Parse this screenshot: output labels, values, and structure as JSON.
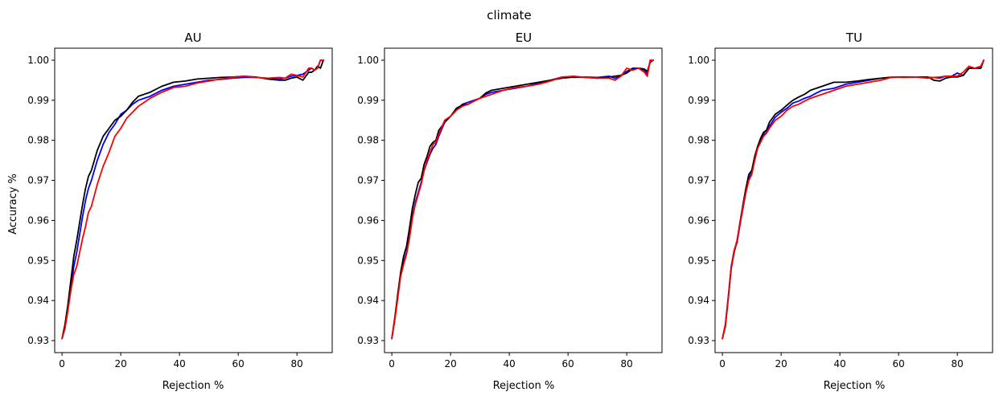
{
  "figure": {
    "title": "climate"
  },
  "chart_data": [
    {
      "type": "line",
      "title": "AU",
      "xlabel": "Rejection %",
      "ylabel": "Accuracy %",
      "xlim": [
        -2.5,
        92
      ],
      "ylim": [
        0.927,
        1.003
      ],
      "xticks": [
        0,
        20,
        40,
        60,
        80
      ],
      "yticks": [
        0.93,
        0.94,
        0.95,
        0.96,
        0.97,
        0.98,
        0.99,
        1.0
      ],
      "ytick_labels": [
        "0.93",
        "0.94",
        "0.95",
        "0.96",
        "0.97",
        "0.98",
        "0.99",
        "1.00"
      ],
      "grid": false,
      "x": [
        0,
        1,
        2,
        3,
        4,
        5,
        6,
        7,
        8,
        9,
        10,
        12,
        14,
        16,
        18,
        20,
        22,
        24,
        26,
        28,
        30,
        34,
        38,
        42,
        46,
        50,
        54,
        58,
        62,
        66,
        70,
        74,
        76,
        78,
        80,
        82,
        84,
        85,
        86,
        87,
        88,
        89
      ],
      "series": [
        {
          "color": "#0000ff",
          "values": [
            0.9305,
            0.9335,
            0.938,
            0.943,
            0.9485,
            0.952,
            0.9565,
            0.961,
            0.965,
            0.968,
            0.97,
            0.975,
            0.979,
            0.982,
            0.984,
            0.9865,
            0.9875,
            0.989,
            0.99,
            0.9905,
            0.991,
            0.9925,
            0.9935,
            0.994,
            0.9945,
            0.995,
            0.9952,
            0.9955,
            0.9957,
            0.9957,
            0.9955,
            0.9953,
            0.9955,
            0.996,
            0.9962,
            0.9965,
            0.9975,
            0.998,
            0.9975,
            0.998,
            1.0,
            1.0
          ]
        },
        {
          "color": "#000000",
          "values": [
            0.9305,
            0.934,
            0.939,
            0.945,
            0.951,
            0.955,
            0.9595,
            0.964,
            0.968,
            0.971,
            0.9725,
            0.9775,
            0.981,
            0.983,
            0.985,
            0.986,
            0.9875,
            0.9895,
            0.991,
            0.9915,
            0.992,
            0.9935,
            0.9945,
            0.9948,
            0.9953,
            0.9955,
            0.9957,
            0.9958,
            0.996,
            0.9958,
            0.9953,
            0.995,
            0.995,
            0.9955,
            0.9958,
            0.995,
            0.997,
            0.997,
            0.9975,
            0.9985,
            0.998,
            1.0
          ]
        },
        {
          "color": "#ff0000",
          "values": [
            0.9305,
            0.933,
            0.9375,
            0.9425,
            0.9465,
            0.9485,
            0.952,
            0.9555,
            0.9585,
            0.962,
            0.9635,
            0.969,
            0.9735,
            0.977,
            0.981,
            0.983,
            0.9855,
            0.987,
            0.9885,
            0.9895,
            0.9905,
            0.992,
            0.9932,
            0.9935,
            0.9943,
            0.9948,
            0.9953,
            0.9957,
            0.996,
            0.9957,
            0.9955,
            0.9957,
            0.9955,
            0.9965,
            0.9962,
            0.9958,
            0.998,
            0.998,
            0.9975,
            0.998,
            1.0,
            1.0
          ]
        }
      ]
    },
    {
      "type": "line",
      "title": "EU",
      "xlabel": "Rejection %",
      "ylabel": "",
      "xlim": [
        -2.5,
        92
      ],
      "ylim": [
        0.927,
        1.003
      ],
      "xticks": [
        0,
        20,
        40,
        60,
        80
      ],
      "yticks": [
        0.93,
        0.94,
        0.95,
        0.96,
        0.97,
        0.98,
        0.99,
        1.0
      ],
      "ytick_labels": [
        "0.93",
        "0.94",
        "0.95",
        "0.96",
        "0.97",
        "0.98",
        "0.99",
        "1.00"
      ],
      "grid": false,
      "x": [
        0,
        1,
        2,
        3,
        4,
        5,
        6,
        7,
        8,
        9,
        10,
        11,
        12,
        13,
        14,
        15,
        16,
        18,
        20,
        22,
        24,
        26,
        28,
        30,
        32,
        34,
        38,
        42,
        46,
        50,
        54,
        58,
        62,
        66,
        70,
        74,
        76,
        78,
        80,
        82,
        84,
        86,
        87,
        88,
        89
      ],
      "series": [
        {
          "color": "#0000ff",
          "values": [
            0.9305,
            0.9355,
            0.941,
            0.9465,
            0.9495,
            0.952,
            0.956,
            0.961,
            0.9645,
            0.967,
            0.9695,
            0.9725,
            0.9745,
            0.9765,
            0.978,
            0.979,
            0.981,
            0.9845,
            0.986,
            0.9875,
            0.989,
            0.9895,
            0.99,
            0.9905,
            0.9915,
            0.992,
            0.9925,
            0.993,
            0.9935,
            0.9943,
            0.995,
            0.9958,
            0.9957,
            0.9958,
            0.9957,
            0.996,
            0.9955,
            0.9962,
            0.9972,
            0.998,
            0.998,
            0.9975,
            0.9965,
            1.0,
            1.0
          ]
        },
        {
          "color": "#000000",
          "values": [
            0.9305,
            0.9355,
            0.9415,
            0.947,
            0.951,
            0.9535,
            0.958,
            0.963,
            0.9665,
            0.9695,
            0.9705,
            0.974,
            0.976,
            0.9785,
            0.9795,
            0.98,
            0.9825,
            0.9845,
            0.986,
            0.988,
            0.9888,
            0.989,
            0.9898,
            0.9905,
            0.9918,
            0.9925,
            0.993,
            0.9935,
            0.994,
            0.9945,
            0.995,
            0.9955,
            0.9958,
            0.9957,
            0.9955,
            0.9958,
            0.996,
            0.9962,
            0.9968,
            0.9978,
            0.998,
            0.9978,
            0.9972,
            0.9995,
            1.0
          ]
        },
        {
          "color": "#ff0000",
          "values": [
            0.9305,
            0.935,
            0.9405,
            0.946,
            0.949,
            0.9515,
            0.9555,
            0.9605,
            0.964,
            0.9665,
            0.969,
            0.9725,
            0.975,
            0.977,
            0.979,
            0.9795,
            0.9815,
            0.985,
            0.986,
            0.9875,
            0.9885,
            0.989,
            0.9898,
            0.9905,
            0.991,
            0.9915,
            0.9925,
            0.9932,
            0.9935,
            0.994,
            0.9948,
            0.9958,
            0.996,
            0.9957,
            0.9955,
            0.9955,
            0.995,
            0.996,
            0.998,
            0.9975,
            0.998,
            0.997,
            0.996,
            1.0,
            1.0
          ]
        }
      ]
    },
    {
      "type": "line",
      "title": "TU",
      "xlabel": "Rejection %",
      "ylabel": "",
      "xlim": [
        -2.5,
        92
      ],
      "ylim": [
        0.927,
        1.003
      ],
      "xticks": [
        0,
        20,
        40,
        60,
        80
      ],
      "yticks": [
        0.93,
        0.94,
        0.95,
        0.96,
        0.97,
        0.98,
        0.99,
        1.0
      ],
      "ytick_labels": [
        "0.93",
        "0.94",
        "0.95",
        "0.96",
        "0.97",
        "0.98",
        "0.99",
        "1.00"
      ],
      "grid": false,
      "x": [
        0,
        1,
        2,
        3,
        4,
        5,
        6,
        7,
        8,
        9,
        10,
        11,
        12,
        13,
        14,
        15,
        16,
        18,
        20,
        22,
        24,
        26,
        28,
        30,
        32,
        34,
        38,
        42,
        46,
        50,
        54,
        58,
        62,
        66,
        70,
        72,
        74,
        76,
        78,
        80,
        82,
        84,
        86,
        88,
        89
      ],
      "series": [
        {
          "color": "#0000ff",
          "values": [
            0.9305,
            0.934,
            0.941,
            0.9485,
            0.9525,
            0.9545,
            0.959,
            0.963,
            0.967,
            0.9705,
            0.972,
            0.9755,
            0.978,
            0.98,
            0.9815,
            0.982,
            0.9835,
            0.9858,
            0.987,
            0.988,
            0.9893,
            0.9898,
            0.9905,
            0.991,
            0.9918,
            0.9925,
            0.993,
            0.994,
            0.9945,
            0.995,
            0.9955,
            0.9957,
            0.9958,
            0.9958,
            0.9957,
            0.9957,
            0.9955,
            0.996,
            0.996,
            0.9968,
            0.9962,
            0.998,
            0.998,
            0.9985,
            1.0
          ]
        },
        {
          "color": "#000000",
          "values": [
            0.9305,
            0.9335,
            0.9405,
            0.948,
            0.952,
            0.955,
            0.9595,
            0.964,
            0.968,
            0.9715,
            0.9725,
            0.976,
            0.9785,
            0.9805,
            0.982,
            0.9825,
            0.9845,
            0.9865,
            0.9875,
            0.9888,
            0.99,
            0.9908,
            0.9915,
            0.9925,
            0.993,
            0.9935,
            0.9945,
            0.9945,
            0.9948,
            0.9952,
            0.9955,
            0.9958,
            0.9958,
            0.9958,
            0.9958,
            0.995,
            0.9948,
            0.9955,
            0.9958,
            0.9958,
            0.9962,
            0.998,
            0.998,
            0.998,
            1.0
          ]
        },
        {
          "color": "#ff0000",
          "values": [
            0.9305,
            0.934,
            0.9405,
            0.948,
            0.9525,
            0.955,
            0.959,
            0.9635,
            0.967,
            0.97,
            0.9715,
            0.975,
            0.978,
            0.9795,
            0.981,
            0.9818,
            0.983,
            0.985,
            0.986,
            0.9875,
            0.9885,
            0.989,
            0.9898,
            0.9905,
            0.991,
            0.9915,
            0.9925,
            0.9935,
            0.994,
            0.9945,
            0.995,
            0.9958,
            0.9957,
            0.9958,
            0.9955,
            0.9957,
            0.9958,
            0.996,
            0.996,
            0.996,
            0.997,
            0.9985,
            0.998,
            0.9985,
            1.0
          ]
        }
      ]
    }
  ]
}
